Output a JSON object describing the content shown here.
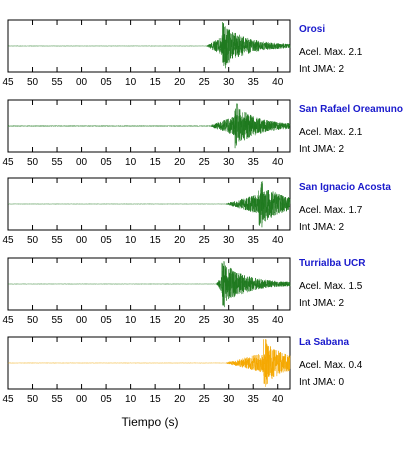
{
  "chart_data": {
    "type": "line",
    "xlabel": "Tiempo (s)",
    "tick_labels": [
      "45",
      "50",
      "55",
      "00",
      "05",
      "10",
      "15",
      "20",
      "25",
      "30",
      "35",
      "40"
    ],
    "x_range_note": "seconds past the minute; axis wraps from 59 to 00",
    "panels": [
      {
        "station": "Orosi",
        "accel_label": "Acel. Max. 2.1",
        "jma_label": "Int JMA: 2",
        "color": "#1f7a1f",
        "onset_s": 25.5,
        "peak_s": 29.0,
        "end_s": 40,
        "noise": 0.02,
        "amp": 1.0
      },
      {
        "station": "San Rafael Oreamuno",
        "accel_label": "Acel. Max. 2.1",
        "jma_label": "Int JMA: 2",
        "color": "#1f7a1f",
        "onset_s": 26.5,
        "peak_s": 31.5,
        "end_s": 42,
        "noise": 0.05,
        "amp": 0.95
      },
      {
        "station": "San Ignacio Acosta",
        "accel_label": "Acel. Max. 1.7",
        "jma_label": "Int JMA: 2",
        "color": "#1f7a1f",
        "onset_s": 29.5,
        "peak_s": 36.5,
        "end_s": 43,
        "noise": 0.02,
        "amp": 1.0
      },
      {
        "station": "Turrialba UCR",
        "accel_label": "Acel. Max. 1.5",
        "jma_label": "Int JMA: 2",
        "color": "#1f7a1f",
        "onset_s": 27.5,
        "peak_s": 29.0,
        "end_s": 43,
        "noise": 0.02,
        "amp": 1.0
      },
      {
        "station": "La Sabana",
        "accel_label": "Acel. Max. 0.4",
        "jma_label": "Int JMA: 0",
        "color": "#f5a800",
        "onset_s": 29.5,
        "peak_s": 37.5,
        "end_s": 43,
        "noise": 0.02,
        "amp": 1.0
      }
    ]
  }
}
